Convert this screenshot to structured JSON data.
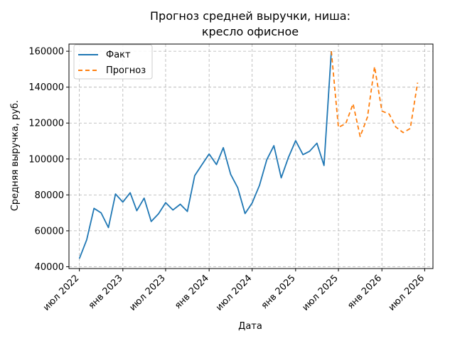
{
  "chart_data": {
    "type": "line",
    "title_lines": [
      "Прогноз средней выручки, ниша:",
      "кресло офисное"
    ],
    "xlabel": "Дата",
    "ylabel": "Средняя выручка, руб.",
    "x_ticks": [
      {
        "date": "2022-07-01",
        "label": "июл 2022"
      },
      {
        "date": "2023-01-01",
        "label": "янв 2023"
      },
      {
        "date": "2023-07-01",
        "label": "июл 2023"
      },
      {
        "date": "2024-01-01",
        "label": "янв 2024"
      },
      {
        "date": "2024-07-01",
        "label": "июл 2024"
      },
      {
        "date": "2025-01-01",
        "label": "янв 2025"
      },
      {
        "date": "2025-07-01",
        "label": "июл 2025"
      },
      {
        "date": "2026-01-01",
        "label": "янв 2026"
      },
      {
        "date": "2026-07-01",
        "label": "июл 2026"
      }
    ],
    "y_ticks": [
      {
        "value": 40000,
        "label": "40000"
      },
      {
        "value": 60000,
        "label": "60000"
      },
      {
        "value": 80000,
        "label": "80000"
      },
      {
        "value": 100000,
        "label": "100000"
      },
      {
        "value": 120000,
        "label": "120000"
      },
      {
        "value": 140000,
        "label": "140000"
      },
      {
        "value": 160000,
        "label": "160000"
      }
    ],
    "xlim": [
      "2022-05-18",
      "2026-08-05"
    ],
    "ylim": [
      39000,
      164000
    ],
    "grid": true,
    "legend_position": "top-left",
    "series": [
      {
        "name": "Факт",
        "color": "#1f77b4",
        "dash": "solid",
        "x": [
          "2022-07-01",
          "2022-08-01",
          "2022-09-01",
          "2022-10-01",
          "2022-11-01",
          "2022-12-01",
          "2023-01-01",
          "2023-02-01",
          "2023-03-01",
          "2023-04-01",
          "2023-05-01",
          "2023-06-01",
          "2023-07-01",
          "2023-08-01",
          "2023-09-01",
          "2023-10-01",
          "2023-11-01",
          "2023-12-01",
          "2024-01-01",
          "2024-02-01",
          "2024-03-01",
          "2024-04-01",
          "2024-05-01",
          "2024-06-01",
          "2024-07-01",
          "2024-08-01",
          "2024-09-01",
          "2024-10-01",
          "2024-11-01",
          "2024-12-01",
          "2025-01-01",
          "2025-02-01",
          "2025-03-01",
          "2025-04-01",
          "2025-05-01",
          "2025-06-01"
        ],
        "y": [
          44500,
          55000,
          72500,
          70000,
          61800,
          80500,
          76000,
          81200,
          71200,
          78200,
          65200,
          69500,
          75700,
          71600,
          74800,
          70800,
          90700,
          96700,
          102800,
          96900,
          106300,
          91500,
          84000,
          69600,
          75500,
          85300,
          99600,
          107400,
          89500,
          100700,
          110200,
          102400,
          104300,
          108800,
          96400,
          160000
        ]
      },
      {
        "name": "Прогноз",
        "color": "#ff7f0e",
        "dash": "6,4",
        "x": [
          "2025-06-01",
          "2025-07-01",
          "2025-08-01",
          "2025-09-01",
          "2025-10-01",
          "2025-11-01",
          "2025-12-01",
          "2026-01-01",
          "2026-02-01",
          "2026-03-01",
          "2026-04-01",
          "2026-05-01",
          "2026-06-01"
        ],
        "y": [
          160000,
          117600,
          119700,
          130700,
          112500,
          123400,
          151400,
          126700,
          125000,
          117800,
          114700,
          117000,
          142500
        ]
      }
    ]
  }
}
